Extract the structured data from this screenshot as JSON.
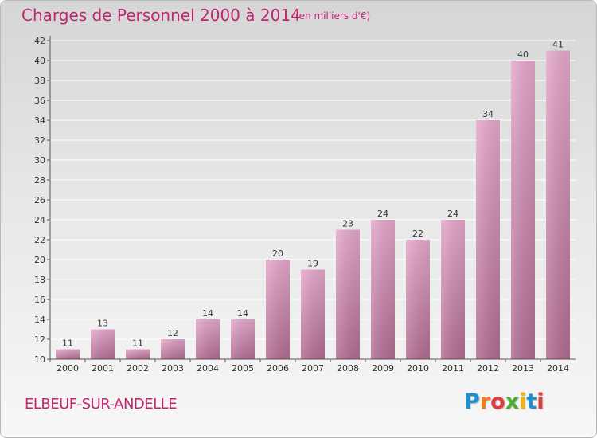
{
  "header": {
    "title": "Charges de Personnel 2000 à 2014",
    "subtitle": "(en milliers d'€)"
  },
  "footer": {
    "commune": "ELBEUF-SUR-ANDELLE",
    "logo": {
      "letters": [
        "P",
        "r",
        "o",
        "x",
        "i",
        "t",
        "i"
      ],
      "colors": [
        "#1e8fd0",
        "#f07c1a",
        "#e23b3b",
        "#4cae32",
        "#f4b400",
        "#1e8fd0",
        "#e23b3b"
      ]
    }
  },
  "colors": {
    "title": "#c0256f",
    "bar_top": "#e6a8cc",
    "bar_bottom": "#b06c92",
    "grid": "#ffffff"
  },
  "chart_data": {
    "type": "bar",
    "categories": [
      "2000",
      "2001",
      "2002",
      "2003",
      "2004",
      "2005",
      "2006",
      "2007",
      "2008",
      "2009",
      "2010",
      "2011",
      "2012",
      "2013",
      "2014"
    ],
    "values": [
      11,
      13,
      11,
      12,
      14,
      14,
      20,
      19,
      23,
      24,
      22,
      24,
      34,
      40,
      41
    ],
    "yticks": [
      "10",
      "12",
      "14",
      "16",
      "18",
      "20",
      "22",
      "24",
      "26",
      "28",
      "30",
      "32",
      "34",
      "36",
      "38",
      "40",
      "42"
    ],
    "ylim": [
      10,
      42
    ],
    "grid": true,
    "legend": "none"
  }
}
